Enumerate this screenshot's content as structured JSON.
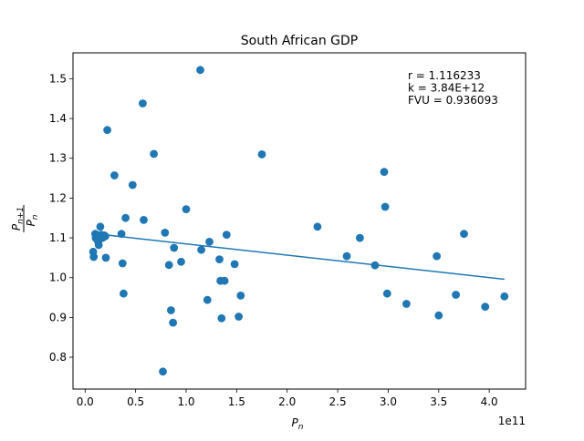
{
  "chart_data": {
    "type": "scatter",
    "title": "South African GDP",
    "xlabel": "P_n",
    "ylabel": "P_{n+1} / P_n",
    "x_offset_label": "1e11",
    "xlim": [
      -12000000000.0,
      436000000000.0
    ],
    "ylim": [
      0.72,
      1.565
    ],
    "xticks": [
      0,
      50000000000.0,
      100000000000.0,
      150000000000.0,
      200000000000.0,
      250000000000.0,
      300000000000.0,
      350000000000.0,
      400000000000.0
    ],
    "xtick_labels": [
      "0.0",
      "0.5",
      "1.0",
      "1.5",
      "2.0",
      "2.5",
      "3.0",
      "3.5",
      "4.0"
    ],
    "yticks": [
      0.8,
      0.9,
      1.0,
      1.1,
      1.2,
      1.3,
      1.4,
      1.5
    ],
    "ytick_labels": [
      "0.8",
      "0.9",
      "1.0",
      "1.1",
      "1.2",
      "1.3",
      "1.4",
      "1.5"
    ],
    "grid": false,
    "marker_color": "#1f77b4",
    "annotations": [
      "r = 1.116233",
      "k = 3.84E+12",
      "FVU = 0.936093"
    ],
    "fit_line": {
      "x": [
        8000000000.0,
        415000000000.0
      ],
      "y": [
        1.111,
        0.996
      ]
    },
    "points": [
      [
        8000000000.0,
        1.065
      ],
      [
        8500000000.0,
        1.052
      ],
      [
        10000000000.0,
        1.11
      ],
      [
        10500000000.0,
        1.1
      ],
      [
        11000000000.0,
        1.105
      ],
      [
        12000000000.0,
        1.095
      ],
      [
        13000000000.0,
        1.09
      ],
      [
        13500000000.0,
        1.082
      ],
      [
        14000000000.0,
        1.098
      ],
      [
        15000000000.0,
        1.128
      ],
      [
        16000000000.0,
        1.108
      ],
      [
        17000000000.0,
        1.1
      ],
      [
        18000000000.0,
        1.102
      ],
      [
        19000000000.0,
        1.106
      ],
      [
        20000000000.0,
        1.104
      ],
      [
        20500000000.0,
        1.05
      ],
      [
        22000000000.0,
        1.371
      ],
      [
        29000000000.0,
        1.257
      ],
      [
        36000000000.0,
        1.11
      ],
      [
        37000000000.0,
        1.036
      ],
      [
        38000000000.0,
        0.96
      ],
      [
        40000000000.0,
        1.15
      ],
      [
        47000000000.0,
        1.233
      ],
      [
        57000000000.0,
        1.438
      ],
      [
        58000000000.0,
        1.145
      ],
      [
        68000000000.0,
        1.311
      ],
      [
        77000000000.0,
        0.764
      ],
      [
        79000000000.0,
        1.113
      ],
      [
        83000000000.0,
        1.032
      ],
      [
        85000000000.0,
        0.918
      ],
      [
        87000000000.0,
        0.887
      ],
      [
        88000000000.0,
        1.075
      ],
      [
        95000000000.0,
        1.04
      ],
      [
        100000000000.0,
        1.172
      ],
      [
        114000000000.0,
        1.522
      ],
      [
        115000000000.0,
        1.07
      ],
      [
        121000000000.0,
        0.944
      ],
      [
        123000000000.0,
        1.09
      ],
      [
        133000000000.0,
        1.046
      ],
      [
        134000000000.0,
        0.992
      ],
      [
        135000000000.0,
        0.898
      ],
      [
        138000000000.0,
        0.992
      ],
      [
        140000000000.0,
        1.108
      ],
      [
        148000000000.0,
        1.034
      ],
      [
        152000000000.0,
        0.902
      ],
      [
        154000000000.0,
        0.955
      ],
      [
        175000000000.0,
        1.31
      ],
      [
        230000000000.0,
        1.128
      ],
      [
        259000000000.0,
        1.054
      ],
      [
        272000000000.0,
        1.1
      ],
      [
        287000000000.0,
        1.031
      ],
      [
        296000000000.0,
        1.266
      ],
      [
        297000000000.0,
        1.178
      ],
      [
        299000000000.0,
        0.96
      ],
      [
        318000000000.0,
        0.934
      ],
      [
        348000000000.0,
        1.054
      ],
      [
        350000000000.0,
        0.905
      ],
      [
        367000000000.0,
        0.957
      ],
      [
        375000000000.0,
        1.11
      ],
      [
        396000000000.0,
        0.927
      ],
      [
        415000000000.0,
        0.953
      ]
    ]
  }
}
